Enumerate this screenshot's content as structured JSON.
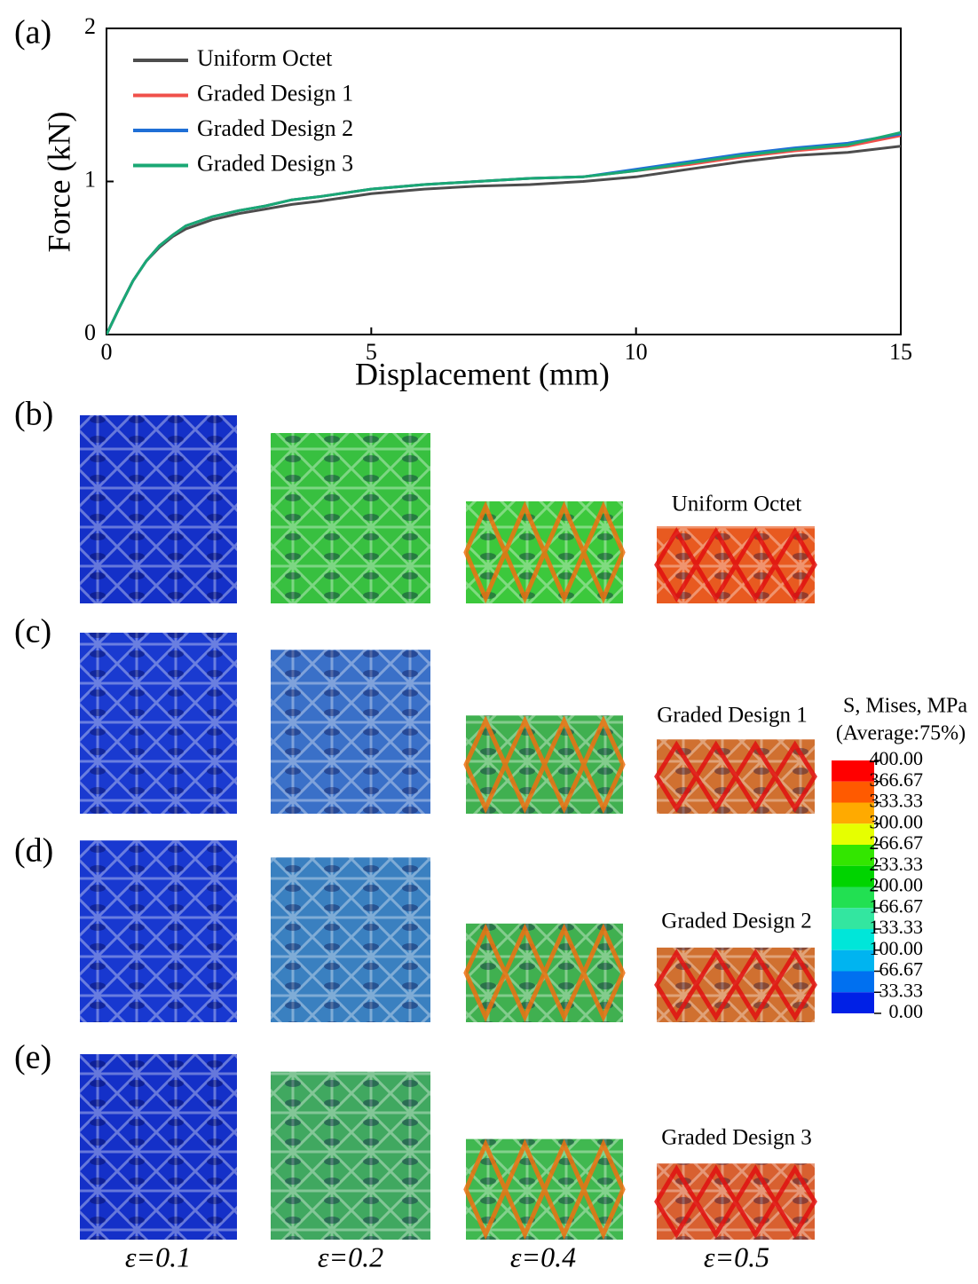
{
  "chart_data": {
    "type": "line",
    "x_label": "Displacement (mm)",
    "y_label": "Force (kN)",
    "x": [
      0,
      0.25,
      0.5,
      0.75,
      1,
      1.25,
      1.5,
      2,
      2.5,
      3,
      3.5,
      4,
      5,
      6,
      7,
      8,
      9,
      10,
      11,
      12,
      13,
      14,
      15
    ],
    "series": [
      {
        "name": "Uniform Octet",
        "color": "#4d4d4d",
        "values": [
          0,
          0.18,
          0.35,
          0.48,
          0.57,
          0.64,
          0.69,
          0.75,
          0.79,
          0.82,
          0.85,
          0.87,
          0.92,
          0.95,
          0.97,
          0.98,
          1.0,
          1.03,
          1.08,
          1.13,
          1.17,
          1.19,
          1.23
        ]
      },
      {
        "name": "Graded Design 1",
        "color": "#f0504a",
        "values": [
          0,
          0.18,
          0.35,
          0.48,
          0.58,
          0.65,
          0.71,
          0.77,
          0.81,
          0.84,
          0.88,
          0.9,
          0.95,
          0.98,
          1.0,
          1.02,
          1.03,
          1.07,
          1.11,
          1.16,
          1.2,
          1.23,
          1.3
        ]
      },
      {
        "name": "Graded Design 2",
        "color": "#1f6fd6",
        "values": [
          0,
          0.18,
          0.35,
          0.48,
          0.58,
          0.65,
          0.71,
          0.77,
          0.81,
          0.84,
          0.88,
          0.9,
          0.95,
          0.98,
          1.0,
          1.02,
          1.03,
          1.08,
          1.13,
          1.18,
          1.22,
          1.25,
          1.31
        ]
      },
      {
        "name": "Graded Design 3",
        "color": "#1aa874",
        "values": [
          0,
          0.18,
          0.35,
          0.48,
          0.58,
          0.65,
          0.71,
          0.77,
          0.81,
          0.84,
          0.88,
          0.9,
          0.95,
          0.98,
          1.0,
          1.02,
          1.03,
          1.07,
          1.12,
          1.17,
          1.21,
          1.24,
          1.32
        ]
      }
    ],
    "xlim": [
      0,
      15
    ],
    "xticks": [
      0,
      5,
      10,
      15
    ],
    "ylim": [
      0,
      2
    ],
    "yticks": [
      0,
      1,
      2
    ],
    "legend": "top-left"
  },
  "panel_labels": [
    "(a)",
    "(b)",
    "(c)",
    "(d)",
    "(e)"
  ],
  "row_titles": [
    "Uniform Octet",
    "Graded Design 1",
    "Graded Design 2",
    "Graded Design 3"
  ],
  "strain_labels": [
    "ε=0.1",
    "ε=0.2",
    "ε=0.4",
    "ε=0.5"
  ],
  "colorbar": {
    "title": [
      "S, Mises, MPa",
      "(Average:75%)"
    ],
    "ticks": [
      {
        "value": 400,
        "label": "400.00"
      },
      {
        "value": 366.67,
        "label": "366.67"
      },
      {
        "value": 333.33,
        "label": "333.33"
      },
      {
        "value": 300,
        "label": "300.00"
      },
      {
        "value": 266.67,
        "label": "266.67"
      },
      {
        "value": 233.33,
        "label": "233.33"
      },
      {
        "value": 200,
        "label": "200.00"
      },
      {
        "value": 166.67,
        "label": "166.67"
      },
      {
        "value": 133.33,
        "label": "133.33"
      },
      {
        "value": 100,
        "label": "100.00"
      },
      {
        "value": 66.67,
        "label": "66.67"
      },
      {
        "value": 33.33,
        "label": "33.33"
      },
      {
        "value": 0,
        "label": "0.00"
      }
    ],
    "colors": [
      "#ff0000",
      "#ff5a00",
      "#ffaa00",
      "#e6ff00",
      "#33e600",
      "#00d400",
      "#22e052",
      "#33e6a0",
      "#00e6d9",
      "#00b4f0",
      "#0070f0",
      "#0020e6"
    ]
  }
}
